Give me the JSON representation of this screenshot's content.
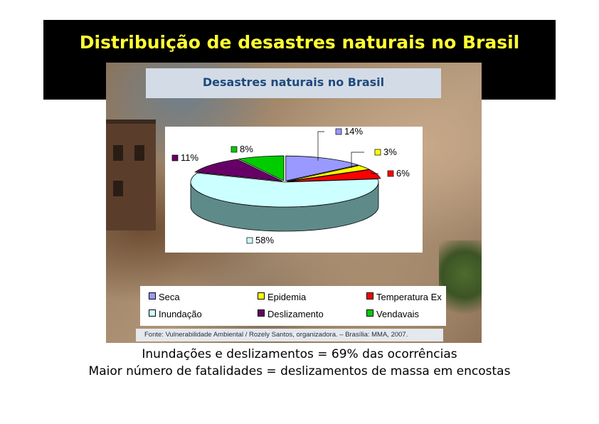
{
  "slide": {
    "title": "Distribuição de desastres naturais no Brasil",
    "caption_line1": "Inundações e deslizamentos = 69% das ocorrências",
    "caption_line2": "Maior número de fatalidades = deslizamentos de massa em encostas"
  },
  "chart_data": {
    "type": "pie",
    "title": "Desastres naturais no Brasil",
    "source": "Fonte: Vulnerabilidade Ambiental / Rozely Santos, organizadora. – Brasília: MMA, 2007.",
    "categories": [
      "Seca",
      "Epidemia",
      "Temperatura Ex",
      "Inundação",
      "Deslizamento",
      "Vendavais"
    ],
    "values": [
      14,
      3,
      6,
      58,
      11,
      8
    ],
    "value_labels": [
      "14%",
      "3%",
      "6%",
      "58%",
      "11%",
      "8%"
    ],
    "colors": [
      "#9999ff",
      "#ffff00",
      "#ff0000",
      "#ccffff",
      "#660066",
      "#00cc00"
    ],
    "style": "3d-exploded",
    "legend_position": "bottom"
  }
}
